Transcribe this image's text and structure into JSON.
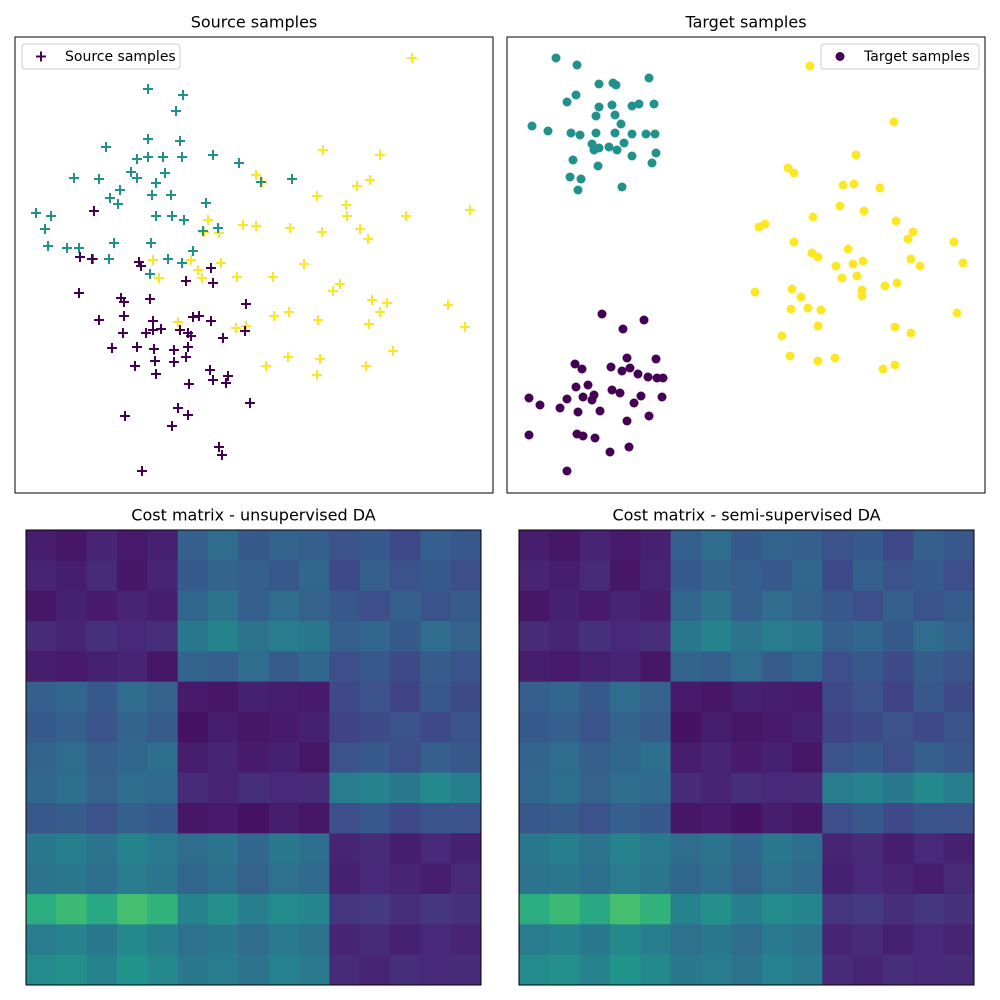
{
  "chart_data": [
    {
      "type": "scatter",
      "title": "Source  samples",
      "marker": "plus",
      "legend": "Source samples",
      "legend_color": "#440154",
      "legend_corner": "upper left",
      "xlim": [
        15,
        493
      ],
      "ylim": [
        493,
        37
      ],
      "groups": [
        {
          "color": "#fde725",
          "x": [
            412,
            323,
            380,
            256,
            262,
            370,
            357,
            317,
            346,
            406,
            470,
            347,
            208,
            243,
            256,
            290,
            322,
            360,
            368,
            204,
            219,
            191,
            153,
            221,
            304,
            198,
            202,
            237,
            273,
            159,
            340,
            333,
            372,
            387,
            448,
            380,
            289,
            274,
            318,
            369,
            465,
            236,
            246,
            178,
            393,
            288,
            320,
            266,
            366,
            317
          ],
          "y": [
            58,
            150,
            155,
            175,
            182,
            180,
            186,
            196,
            205,
            216,
            210,
            216,
            220,
            225,
            226,
            228,
            232,
            229,
            239,
            232,
            233,
            260,
            260,
            263,
            264,
            270,
            278,
            277,
            277,
            278,
            284,
            291,
            300,
            303,
            305,
            312,
            312,
            316,
            320,
            324,
            327,
            328,
            326,
            322,
            351,
            357,
            359,
            366,
            366,
            375
          ]
        },
        {
          "color": "#21918c",
          "x": [
            148,
            183,
            176,
            148,
            180,
            106,
            137,
            148,
            163,
            182,
            213,
            239,
            131,
            137,
            165,
            74,
            99,
            156,
            120,
            110,
            118,
            152,
            171,
            206,
            261,
            292,
            36,
            51,
            45,
            156,
            172,
            184,
            203,
            218,
            48,
            67,
            79,
            114,
            93,
            109,
            151,
            193,
            182,
            150,
            168
          ],
          "y": [
            89,
            95,
            111,
            139,
            141,
            147,
            159,
            157,
            157,
            157,
            155,
            163,
            172,
            178,
            173,
            178,
            179,
            183,
            190,
            198,
            204,
            195,
            195,
            203,
            182,
            179,
            213,
            216,
            229,
            216,
            216,
            220,
            231,
            228,
            246,
            248,
            248,
            243,
            259,
            259,
            243,
            251,
            263,
            274,
            259
          ]
        },
        {
          "color": "#440154",
          "x": [
            94,
            80,
            92,
            139,
            141,
            79,
            121,
            124,
            150,
            186,
            211,
            213,
            246,
            99,
            124,
            153,
            180,
            193,
            199,
            211,
            153,
            146,
            161,
            123,
            188,
            191,
            245,
            223,
            112,
            137,
            154,
            174,
            188,
            155,
            135,
            186,
            156,
            174,
            210,
            189,
            213,
            228,
            226,
            250,
            178,
            188,
            125,
            172,
            219,
            222,
            142
          ],
          "y": [
            211,
            257,
            259,
            262,
            266,
            293,
            298,
            302,
            299,
            281,
            268,
            283,
            304,
            320,
            316,
            321,
            330,
            317,
            316,
            321,
            330,
            333,
            329,
            333,
            333,
            336,
            331,
            338,
            348,
            347,
            349,
            350,
            347,
            361,
            366,
            357,
            374,
            362,
            370,
            384,
            380,
            376,
            383,
            403,
            408,
            415,
            416,
            426,
            447,
            455,
            471
          ]
        }
      ]
    },
    {
      "type": "scatter",
      "title": "Target samples",
      "marker": "circle",
      "legend": "Target samples",
      "legend_color": "#440154",
      "legend_corner": "upper right",
      "xlim": [
        507,
        985
      ],
      "ylim": [
        493,
        37
      ],
      "groups": [
        {
          "color": "#21918c",
          "x": [
            556,
            577,
            599,
            613,
            616,
            649,
            576,
            567,
            599,
            612,
            632,
            639,
            654,
            532,
            548,
            596,
            615,
            621,
            571,
            580,
            596,
            615,
            632,
            646,
            655,
            592,
            599,
            609,
            624,
            656,
            573,
            598,
            632,
            652,
            570,
            581,
            578,
            622,
            617,
            594
          ],
          "y": [
            58,
            65,
            84,
            83,
            85,
            78,
            95,
            102,
            107,
            105,
            106,
            104,
            104,
            126,
            131,
            116,
            115,
            124,
            133,
            135,
            133,
            133,
            134,
            134,
            134,
            144,
            148,
            147,
            143,
            153,
            160,
            166,
            156,
            163,
            177,
            179,
            190,
            187,
            150,
            150
          ]
        },
        {
          "color": "#fde725",
          "x": [
            810,
            894,
            856,
            788,
            794,
            843,
            854,
            880,
            840,
            864,
            813,
            896,
            759,
            765,
            913,
            908,
            794,
            954,
            848,
            812,
            818,
            836,
            853,
            863,
            911,
            920,
            963,
            857,
            842,
            862,
            897,
            885,
            755,
            792,
            801,
            862,
            791,
            808,
            821,
            957,
            818,
            895,
            911,
            782,
            790,
            818,
            835,
            883,
            895
          ],
          "y": [
            66,
            122,
            155,
            168,
            173,
            185,
            184,
            188,
            206,
            211,
            217,
            221,
            227,
            224,
            232,
            239,
            242,
            242,
            249,
            253,
            257,
            266,
            264,
            261,
            259,
            266,
            263,
            276,
            278,
            290,
            283,
            286,
            292,
            289,
            297,
            296,
            309,
            308,
            310,
            313,
            326,
            327,
            333,
            336,
            356,
            361,
            358,
            369,
            365
          ]
        },
        {
          "color": "#440154",
          "x": [
            602,
            623,
            644,
            575,
            582,
            611,
            627,
            656,
            622,
            630,
            638,
            648,
            657,
            663,
            576,
            588,
            594,
            583,
            592,
            567,
            540,
            529,
            560,
            578,
            600,
            612,
            620,
            641,
            662,
            634,
            649,
            529,
            577,
            583,
            595,
            627,
            610,
            629,
            567
          ],
          "y": [
            314,
            329,
            320,
            364,
            369,
            367,
            358,
            359,
            371,
            368,
            374,
            377,
            378,
            378,
            387,
            385,
            395,
            397,
            400,
            399,
            405,
            398,
            408,
            412,
            411,
            390,
            393,
            396,
            397,
            403,
            416,
            435,
            434,
            436,
            438,
            421,
            452,
            447,
            471
          ]
        }
      ]
    },
    {
      "type": "heatmap",
      "title": "Cost matrix - unsupervised DA",
      "colormap": "viridis",
      "clim": [
        0,
        1
      ],
      "matrix": [
        [
          0.08,
          0.06,
          0.1,
          0.07,
          0.09,
          0.3,
          0.35,
          0.28,
          0.32,
          0.3,
          0.25,
          0.28,
          0.22,
          0.3,
          0.27
        ],
        [
          0.1,
          0.08,
          0.12,
          0.06,
          0.1,
          0.28,
          0.32,
          0.3,
          0.27,
          0.33,
          0.22,
          0.3,
          0.25,
          0.28,
          0.24
        ],
        [
          0.06,
          0.09,
          0.07,
          0.1,
          0.08,
          0.33,
          0.38,
          0.3,
          0.35,
          0.31,
          0.27,
          0.24,
          0.3,
          0.26,
          0.29
        ],
        [
          0.12,
          0.1,
          0.14,
          0.11,
          0.13,
          0.4,
          0.45,
          0.38,
          0.42,
          0.4,
          0.3,
          0.33,
          0.28,
          0.35,
          0.31
        ],
        [
          0.08,
          0.07,
          0.09,
          0.1,
          0.06,
          0.32,
          0.3,
          0.35,
          0.29,
          0.33,
          0.24,
          0.27,
          0.23,
          0.29,
          0.26
        ],
        [
          0.3,
          0.33,
          0.28,
          0.35,
          0.31,
          0.07,
          0.06,
          0.09,
          0.08,
          0.07,
          0.22,
          0.25,
          0.2,
          0.27,
          0.23
        ],
        [
          0.28,
          0.3,
          0.26,
          0.32,
          0.29,
          0.05,
          0.08,
          0.06,
          0.07,
          0.09,
          0.2,
          0.23,
          0.25,
          0.22,
          0.26
        ],
        [
          0.32,
          0.35,
          0.3,
          0.33,
          0.36,
          0.08,
          0.1,
          0.07,
          0.09,
          0.06,
          0.25,
          0.28,
          0.24,
          0.3,
          0.27
        ],
        [
          0.33,
          0.36,
          0.31,
          0.35,
          0.34,
          0.12,
          0.1,
          0.13,
          0.11,
          0.12,
          0.42,
          0.45,
          0.4,
          0.47,
          0.43
        ],
        [
          0.27,
          0.29,
          0.25,
          0.3,
          0.28,
          0.06,
          0.07,
          0.05,
          0.08,
          0.06,
          0.24,
          0.27,
          0.22,
          0.26,
          0.25
        ],
        [
          0.4,
          0.43,
          0.38,
          0.45,
          0.41,
          0.35,
          0.38,
          0.33,
          0.4,
          0.36,
          0.1,
          0.12,
          0.08,
          0.11,
          0.09
        ],
        [
          0.38,
          0.4,
          0.36,
          0.42,
          0.39,
          0.33,
          0.36,
          0.31,
          0.37,
          0.34,
          0.09,
          0.11,
          0.1,
          0.08,
          0.12
        ],
        [
          0.62,
          0.68,
          0.6,
          0.7,
          0.65,
          0.45,
          0.5,
          0.43,
          0.48,
          0.46,
          0.15,
          0.17,
          0.13,
          0.16,
          0.14
        ],
        [
          0.42,
          0.45,
          0.4,
          0.47,
          0.43,
          0.37,
          0.4,
          0.35,
          0.41,
          0.38,
          0.1,
          0.12,
          0.09,
          0.11,
          0.1
        ],
        [
          0.48,
          0.5,
          0.45,
          0.52,
          0.47,
          0.4,
          0.42,
          0.38,
          0.44,
          0.41,
          0.12,
          0.1,
          0.13,
          0.11,
          0.12
        ]
      ]
    },
    {
      "type": "heatmap",
      "title": "Cost matrix - semi-supervised DA",
      "colormap": "viridis",
      "clim": [
        0,
        1
      ],
      "matrix": [
        [
          0.08,
          0.06,
          0.1,
          0.07,
          0.09,
          0.3,
          0.35,
          0.28,
          0.32,
          0.3,
          0.25,
          0.28,
          0.22,
          0.3,
          0.27
        ],
        [
          0.1,
          0.08,
          0.12,
          0.06,
          0.1,
          0.28,
          0.32,
          0.3,
          0.27,
          0.33,
          0.22,
          0.3,
          0.25,
          0.28,
          0.24
        ],
        [
          0.06,
          0.09,
          0.07,
          0.1,
          0.08,
          0.33,
          0.38,
          0.3,
          0.35,
          0.31,
          0.27,
          0.24,
          0.3,
          0.26,
          0.29
        ],
        [
          0.12,
          0.1,
          0.14,
          0.11,
          0.13,
          0.4,
          0.45,
          0.38,
          0.42,
          0.4,
          0.3,
          0.33,
          0.28,
          0.35,
          0.31
        ],
        [
          0.08,
          0.07,
          0.09,
          0.1,
          0.06,
          0.32,
          0.3,
          0.35,
          0.29,
          0.33,
          0.24,
          0.27,
          0.23,
          0.29,
          0.26
        ],
        [
          0.3,
          0.33,
          0.28,
          0.35,
          0.31,
          0.07,
          0.06,
          0.09,
          0.08,
          0.07,
          0.22,
          0.25,
          0.2,
          0.27,
          0.23
        ],
        [
          0.28,
          0.3,
          0.26,
          0.32,
          0.29,
          0.05,
          0.08,
          0.06,
          0.07,
          0.09,
          0.2,
          0.23,
          0.25,
          0.22,
          0.26
        ],
        [
          0.32,
          0.35,
          0.3,
          0.33,
          0.36,
          0.08,
          0.1,
          0.07,
          0.09,
          0.06,
          0.25,
          0.28,
          0.24,
          0.3,
          0.27
        ],
        [
          0.33,
          0.36,
          0.31,
          0.35,
          0.34,
          0.12,
          0.1,
          0.13,
          0.11,
          0.12,
          0.42,
          0.45,
          0.4,
          0.47,
          0.43
        ],
        [
          0.27,
          0.29,
          0.25,
          0.3,
          0.28,
          0.06,
          0.07,
          0.05,
          0.08,
          0.06,
          0.24,
          0.27,
          0.22,
          0.26,
          0.25
        ],
        [
          0.4,
          0.43,
          0.38,
          0.45,
          0.41,
          0.35,
          0.38,
          0.33,
          0.4,
          0.36,
          0.1,
          0.12,
          0.08,
          0.11,
          0.09
        ],
        [
          0.38,
          0.4,
          0.36,
          0.42,
          0.39,
          0.33,
          0.36,
          0.31,
          0.37,
          0.34,
          0.09,
          0.11,
          0.1,
          0.08,
          0.12
        ],
        [
          0.62,
          0.68,
          0.6,
          0.7,
          0.65,
          0.45,
          0.5,
          0.43,
          0.48,
          0.46,
          0.15,
          0.17,
          0.13,
          0.16,
          0.14
        ],
        [
          0.42,
          0.45,
          0.4,
          0.47,
          0.43,
          0.37,
          0.4,
          0.35,
          0.41,
          0.38,
          0.1,
          0.12,
          0.09,
          0.11,
          0.1
        ],
        [
          0.48,
          0.5,
          0.45,
          0.52,
          0.47,
          0.4,
          0.42,
          0.38,
          0.44,
          0.41,
          0.12,
          0.1,
          0.13,
          0.11,
          0.12
        ]
      ]
    }
  ]
}
